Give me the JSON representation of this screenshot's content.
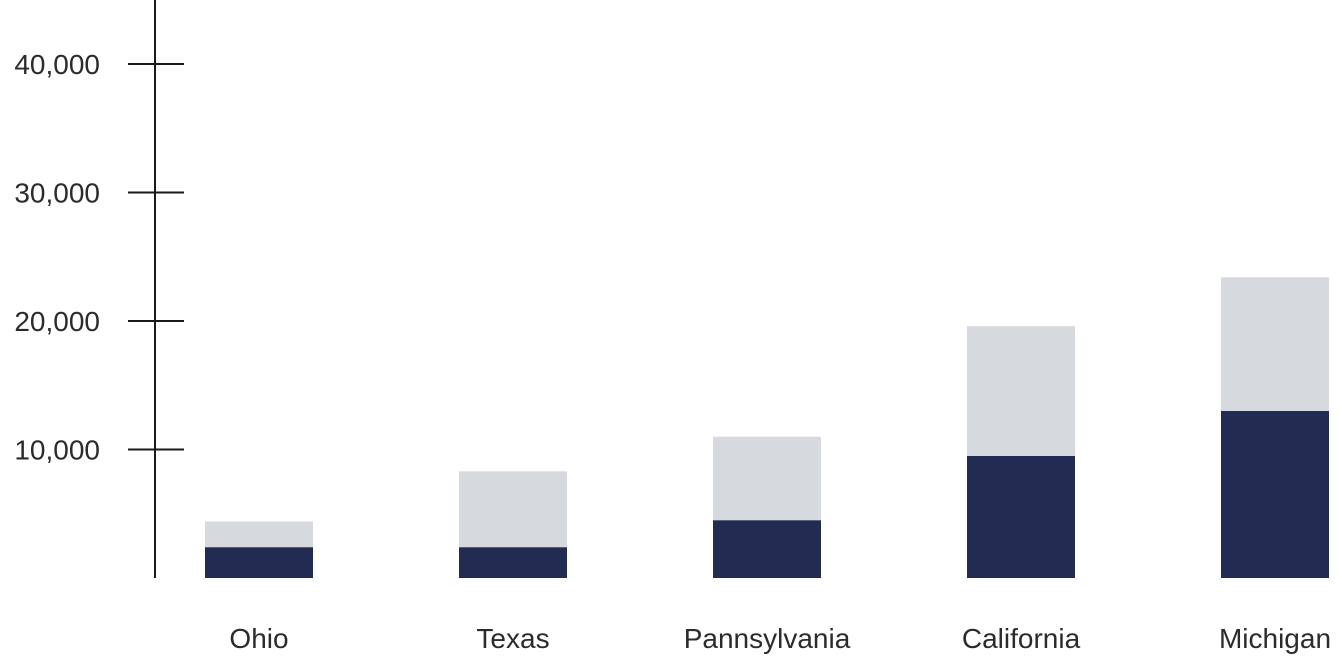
{
  "chart_data": {
    "type": "bar",
    "stacked": true,
    "title": "",
    "xlabel": "",
    "ylabel": "",
    "categories": [
      "Ohio",
      "Texas",
      "Pannsylvania",
      "California",
      "Michigan"
    ],
    "series": [
      {
        "values": [
          2400,
          2400,
          4500,
          9500,
          13000
        ],
        "color": "#222c52"
      },
      {
        "values": [
          2000,
          5900,
          6500,
          10100,
          10400
        ],
        "color": "#d6d9de"
      }
    ],
    "yticks": [
      10000,
      20000,
      30000,
      40000
    ],
    "ytick_labels": [
      "10,000",
      "20,000",
      "30,000",
      "40,000"
    ],
    "ylim": [
      0,
      45000
    ],
    "grid": false,
    "legend": "none",
    "colors": {
      "axis": "#1a1a1a",
      "text": "#2b2b2b",
      "background": "#ffffff"
    }
  }
}
